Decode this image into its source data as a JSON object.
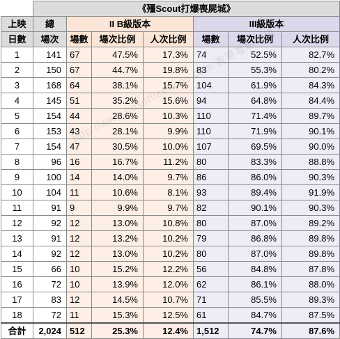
{
  "title": "《殭Scout打爆喪屍城》",
  "headers": {
    "day_top": "上映",
    "day_bottom": "日數",
    "total_top": "總",
    "total_bottom": "場次",
    "group_ii": "II B級版本",
    "group_iii": "III級版本",
    "screenings": "場數",
    "screening_ratio": "場次比例",
    "attendance_ratio": "人次比例"
  },
  "rows": [
    {
      "day": "1",
      "total": "141",
      "ii_count": "67",
      "ii_screen_pct": "47.5%",
      "ii_attend_pct": "17.3%",
      "iii_count": "74",
      "iii_screen_pct": "52.5%",
      "iii_attend_pct": "82.7%"
    },
    {
      "day": "2",
      "total": "150",
      "ii_count": "67",
      "ii_screen_pct": "44.7%",
      "ii_attend_pct": "19.8%",
      "iii_count": "83",
      "iii_screen_pct": "55.3%",
      "iii_attend_pct": "80.2%"
    },
    {
      "day": "3",
      "total": "168",
      "ii_count": "64",
      "ii_screen_pct": "38.1%",
      "ii_attend_pct": "15.7%",
      "iii_count": "104",
      "iii_screen_pct": "61.9%",
      "iii_attend_pct": "84.3%"
    },
    {
      "day": "4",
      "total": "145",
      "ii_count": "51",
      "ii_screen_pct": "35.2%",
      "ii_attend_pct": "15.6%",
      "iii_count": "94",
      "iii_screen_pct": "64.8%",
      "iii_attend_pct": "84.4%"
    },
    {
      "day": "5",
      "total": "154",
      "ii_count": "44",
      "ii_screen_pct": "28.6%",
      "ii_attend_pct": "10.3%",
      "iii_count": "110",
      "iii_screen_pct": "71.4%",
      "iii_attend_pct": "89.7%"
    },
    {
      "day": "6",
      "total": "153",
      "ii_count": "43",
      "ii_screen_pct": "28.1%",
      "ii_attend_pct": "9.9%",
      "iii_count": "110",
      "iii_screen_pct": "71.9%",
      "iii_attend_pct": "90.1%"
    },
    {
      "day": "7",
      "total": "154",
      "ii_count": "47",
      "ii_screen_pct": "30.5%",
      "ii_attend_pct": "10.0%",
      "iii_count": "107",
      "iii_screen_pct": "69.5%",
      "iii_attend_pct": "90.0%"
    },
    {
      "day": "8",
      "total": "96",
      "ii_count": "16",
      "ii_screen_pct": "16.7%",
      "ii_attend_pct": "11.2%",
      "iii_count": "80",
      "iii_screen_pct": "83.3%",
      "iii_attend_pct": "88.8%"
    },
    {
      "day": "9",
      "total": "100",
      "ii_count": "14",
      "ii_screen_pct": "14.0%",
      "ii_attend_pct": "9.7%",
      "iii_count": "86",
      "iii_screen_pct": "86.0%",
      "iii_attend_pct": "90.3%"
    },
    {
      "day": "10",
      "total": "104",
      "ii_count": "11",
      "ii_screen_pct": "10.6%",
      "ii_attend_pct": "8.1%",
      "iii_count": "93",
      "iii_screen_pct": "89.4%",
      "iii_attend_pct": "91.9%"
    },
    {
      "day": "11",
      "total": "91",
      "ii_count": "9",
      "ii_screen_pct": "9.9%",
      "ii_attend_pct": "9.7%",
      "iii_count": "82",
      "iii_screen_pct": "90.1%",
      "iii_attend_pct": "90.3%"
    },
    {
      "day": "12",
      "total": "92",
      "ii_count": "12",
      "ii_screen_pct": "13.0%",
      "ii_attend_pct": "10.8%",
      "iii_count": "80",
      "iii_screen_pct": "87.0%",
      "iii_attend_pct": "89.2%"
    },
    {
      "day": "13",
      "total": "91",
      "ii_count": "12",
      "ii_screen_pct": "13.2%",
      "ii_attend_pct": "10.2%",
      "iii_count": "79",
      "iii_screen_pct": "86.8%",
      "iii_attend_pct": "89.8%"
    },
    {
      "day": "14",
      "total": "92",
      "ii_count": "12",
      "ii_screen_pct": "13.0%",
      "ii_attend_pct": "10.2%",
      "iii_count": "80",
      "iii_screen_pct": "87.0%",
      "iii_attend_pct": "89.8%"
    },
    {
      "day": "15",
      "total": "66",
      "ii_count": "10",
      "ii_screen_pct": "15.2%",
      "ii_attend_pct": "12.2%",
      "iii_count": "56",
      "iii_screen_pct": "84.8%",
      "iii_attend_pct": "87.8%"
    },
    {
      "day": "16",
      "total": "72",
      "ii_count": "10",
      "ii_screen_pct": "13.9%",
      "ii_attend_pct": "12.0%",
      "iii_count": "62",
      "iii_screen_pct": "86.1%",
      "iii_attend_pct": "88.0%"
    },
    {
      "day": "17",
      "total": "83",
      "ii_count": "12",
      "ii_screen_pct": "14.5%",
      "ii_attend_pct": "10.7%",
      "iii_count": "71",
      "iii_screen_pct": "85.5%",
      "iii_attend_pct": "89.3%"
    },
    {
      "day": "18",
      "total": "72",
      "ii_count": "11",
      "ii_screen_pct": "15.3%",
      "ii_attend_pct": "12.5%",
      "iii_count": "61",
      "iii_screen_pct": "84.7%",
      "iii_attend_pct": "87.5%"
    }
  ],
  "totals": {
    "label": "合計",
    "total": "2,024",
    "ii_count": "512",
    "ii_screen_pct": "25.3%",
    "ii_attend_pct": "12.4%",
    "iii_count": "1,512",
    "iii_screen_pct": "74.7%",
    "iii_attend_pct": "87.6%"
  },
  "watermark": "http://www.boxofficeflops.com 香港電影票房"
}
